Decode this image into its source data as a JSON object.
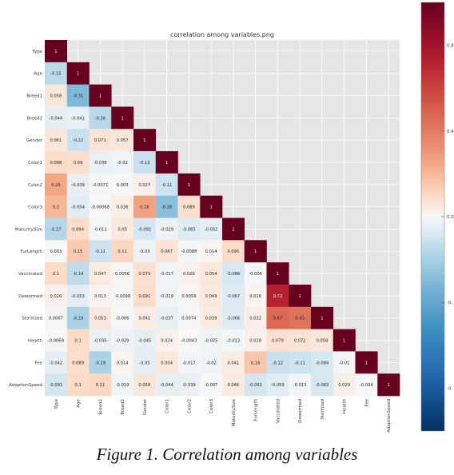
{
  "chart_data": {
    "type": "heatmap",
    "title": "correlation among variables.png",
    "variables": [
      "Type",
      "Age",
      "Breed1",
      "Breed2",
      "Gender",
      "Color1",
      "Color2",
      "Color3",
      "MaturitySize",
      "FurLength",
      "Vaccinated",
      "Dewormed",
      "Sterilized",
      "Health",
      "Fee",
      "AdoptionSpeed"
    ],
    "lower_triangle_labels": [
      [
        "1"
      ],
      [
        "-0.15",
        "1"
      ],
      [
        "0.058",
        "-0.31",
        "1"
      ],
      [
        "-0.044",
        "-0.041",
        "-0.16",
        "1"
      ],
      [
        "0.061",
        "-0.12",
        "0.071",
        "0.057",
        "1"
      ],
      [
        "0.098",
        "0.09",
        "-0.036",
        "-0.02",
        "-0.12",
        "1"
      ],
      [
        "0.25",
        "-0.039",
        "-0.0071",
        "0.003",
        "0.027",
        "-0.11",
        "1"
      ],
      [
        "0.2",
        "-0.054",
        "-0.00068",
        "0.036",
        "0.26",
        "-0.28",
        "0.089",
        "1"
      ],
      [
        "-0.17",
        "0.094",
        "-0.011",
        "0.05",
        "-0.092",
        "-0.029",
        "-0.065",
        "-0.052",
        "1"
      ],
      [
        "0.003",
        "0.15",
        "-0.11",
        "0.11",
        "-0.03",
        "0.067",
        "-0.0088",
        "0.014",
        "0.095",
        "1"
      ],
      [
        "0.1",
        "-0.14",
        "0.047",
        "0.0056",
        "0.079",
        "-0.017",
        "0.026",
        "0.054",
        "-0.088",
        "-0.006",
        "1"
      ],
      [
        "0.026",
        "-0.053",
        "0.013",
        "-0.0098",
        "0.091",
        "-0.019",
        "0.0058",
        "0.049",
        "-0.067",
        "0.016",
        "0.72",
        "1"
      ],
      [
        "0.0067",
        "-0.19",
        "0.053",
        "-0.006",
        "0.041",
        "-0.037",
        "0.0074",
        "0.039",
        "-0.066",
        "0.032",
        "0.47",
        "0.43",
        "1"
      ],
      [
        "-0.0069",
        "0.1",
        "-0.035",
        "-0.029",
        "-0.045",
        "0.024",
        "-0.0043",
        "-0.025",
        "-0.013",
        "0.028",
        "0.079",
        "0.072",
        "0.058",
        "1"
      ],
      [
        "-0.042",
        "0.089",
        "-0.19",
        "0.014",
        "-0.05",
        "0.054",
        "-0.017",
        "-0.02",
        "0.041",
        "0.16",
        "-0.12",
        "-0.11",
        "-0.084",
        "-0.01",
        "1"
      ],
      [
        "-0.091",
        "0.1",
        "0.11",
        "-0.019",
        "0.058",
        "-0.044",
        "-0.039",
        "-0.007",
        "0.046",
        "-0.091",
        "-0.059",
        "-0.013",
        "-0.083",
        "0.029",
        "-0.004",
        "1"
      ]
    ],
    "colorbar": {
      "range": [
        -1,
        1
      ],
      "tick_labels": [
        "0.8",
        "0.4",
        "0.0",
        "-0.",
        "-0."
      ],
      "tick_values": [
        0.8,
        0.4,
        0.0,
        -0.4,
        -0.8
      ]
    },
    "colormap": "RdBu_r",
    "upper_triangle": "masked",
    "background": "#e5e5e5"
  },
  "caption": "Figure 1. Correlation among variables"
}
